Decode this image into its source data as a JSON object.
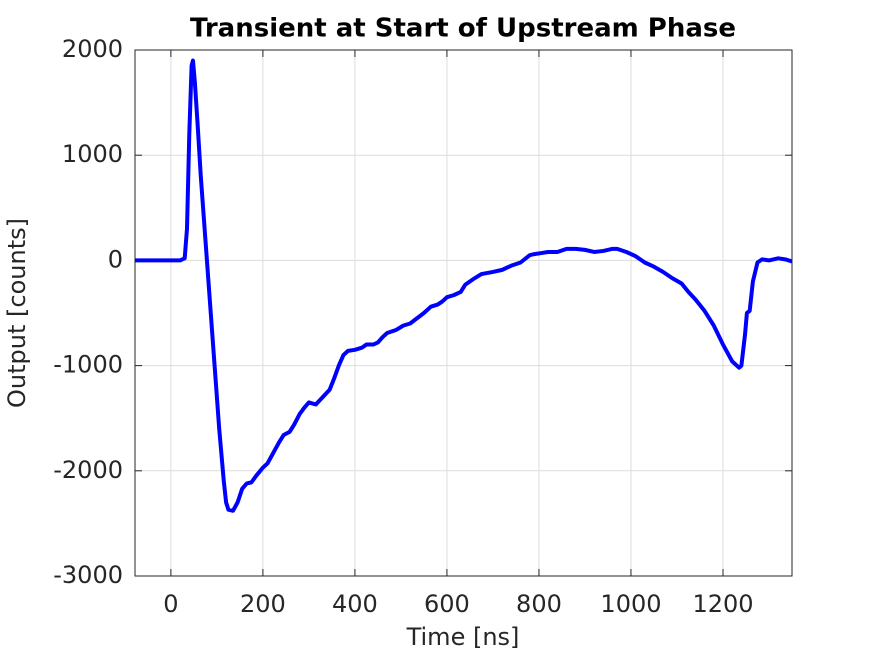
{
  "chart_data": {
    "type": "line",
    "title": "Transient at Start of Upstream Phase",
    "x_label": "Time [ns]",
    "y_label": "Output [counts]",
    "xlim": [
      -78,
      1350
    ],
    "ylim": [
      -3000,
      2000
    ],
    "xticks": [
      0,
      200,
      400,
      600,
      800,
      1000,
      1200
    ],
    "yticks": [
      -3000,
      -2000,
      -1000,
      0,
      1000,
      2000
    ],
    "grid": true,
    "series": [
      {
        "color": "#0000ff",
        "x": [
          -78,
          20,
          30,
          35,
          40,
          45,
          48,
          52,
          58,
          65,
          75,
          85,
          95,
          105,
          115,
          120,
          125,
          135,
          145,
          155,
          165,
          175,
          185,
          200,
          210,
          220,
          235,
          245,
          258,
          268,
          280,
          290,
          300,
          315,
          330,
          345,
          355,
          365,
          375,
          385,
          400,
          415,
          425,
          440,
          450,
          460,
          470,
          490,
          505,
          520,
          535,
          550,
          565,
          580,
          590,
          600,
          615,
          630,
          640,
          660,
          675,
          700,
          720,
          740,
          760,
          780,
          790,
          805,
          820,
          840,
          860,
          880,
          900,
          920,
          940,
          960,
          970,
          990,
          1010,
          1030,
          1050,
          1070,
          1090,
          1110,
          1125,
          1140,
          1160,
          1180,
          1200,
          1220,
          1235,
          1240,
          1248,
          1252,
          1258,
          1265,
          1275,
          1285,
          1300,
          1320,
          1335,
          1350
        ],
        "values": [
          0,
          0,
          20,
          300,
          1200,
          1850,
          1900,
          1700,
          1300,
          800,
          200,
          -400,
          -1000,
          -1600,
          -2100,
          -2300,
          -2370,
          -2380,
          -2300,
          -2170,
          -2120,
          -2110,
          -2050,
          -1970,
          -1930,
          -1850,
          -1730,
          -1660,
          -1630,
          -1560,
          -1460,
          -1400,
          -1350,
          -1370,
          -1300,
          -1230,
          -1120,
          -1000,
          -900,
          -860,
          -850,
          -830,
          -800,
          -800,
          -780,
          -730,
          -690,
          -660,
          -620,
          -600,
          -550,
          -500,
          -440,
          -420,
          -390,
          -350,
          -330,
          -300,
          -230,
          -170,
          -130,
          -110,
          -90,
          -50,
          -20,
          50,
          60,
          70,
          80,
          80,
          110,
          110,
          100,
          80,
          90,
          110,
          110,
          80,
          40,
          -20,
          -60,
          -110,
          -170,
          -220,
          -300,
          -370,
          -480,
          -620,
          -800,
          -960,
          -1020,
          -1000,
          -700,
          -500,
          -480,
          -200,
          -20,
          10,
          0,
          20,
          10,
          -10
        ]
      }
    ]
  }
}
